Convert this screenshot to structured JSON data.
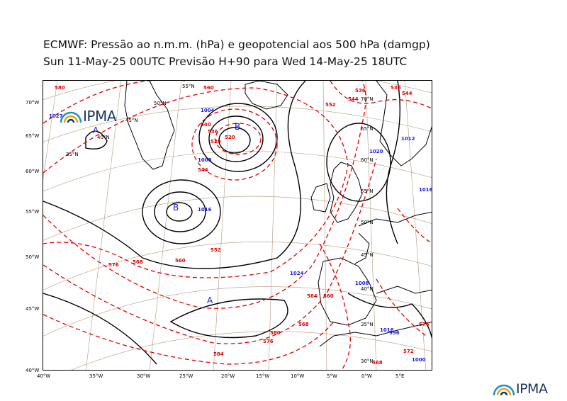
{
  "title": {
    "line1": "ECMWF:  Pressão ao n.m.m. (hPa) e geopotencial aos 500 hPa (damgp)",
    "line2": "Sun 11-May-25 00UTC Previsão H+90 para Wed 14-May-25 18UTC"
  },
  "axes": {
    "left_lat_labels": [
      "70°W",
      "65°W",
      "60°W",
      "55°W",
      "50°W",
      "45°W",
      "40°W"
    ],
    "bottom_lon_labels": [
      "40°W",
      "35°W",
      "30°W",
      "25°W",
      "20°W",
      "15°W",
      "10°W",
      "5°W",
      "0°W",
      "5°E"
    ]
  },
  "grid_labels": [
    "55°N",
    "50°N",
    "45°N",
    "40°N",
    "35°N",
    "70°N",
    "65°N",
    "60°N",
    "55°N",
    "50°N",
    "45°N",
    "40°N",
    "35°N",
    "30°N"
  ],
  "isobar_labels": [
    "1027",
    "1004",
    "1008",
    "1016",
    "1020",
    "1024",
    "1016",
    "1012",
    "1008",
    "1000",
    "1016",
    "996"
  ],
  "geopotential_labels": [
    "580",
    "560",
    "540",
    "528",
    "520",
    "536",
    "544",
    "552",
    "560",
    "568",
    "576",
    "580",
    "584",
    "560",
    "568",
    "576",
    "552",
    "544",
    "536",
    "536",
    "544",
    "564",
    "568",
    "572",
    "576"
  ],
  "pressure_centers": {
    "highs": [
      "A",
      "A"
    ],
    "lows": [
      "B",
      "B"
    ]
  },
  "logos": {
    "inset_text": "IPMA",
    "footer_text": "IPMA"
  },
  "colors": {
    "isobar": "#000000",
    "geopotential": "#dd0000",
    "isobar_label": "#1a1ad8",
    "coastline": "#000000",
    "graticule": "#b09a7a"
  }
}
